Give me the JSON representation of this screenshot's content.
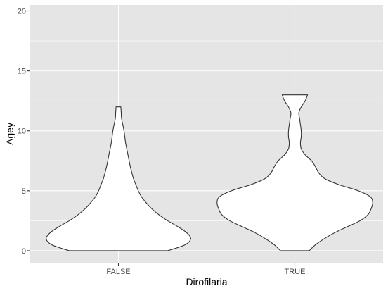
{
  "chart_data": {
    "type": "violin",
    "xlabel": "Dirofilaria",
    "ylabel": "Agey",
    "categories": [
      "FALSE",
      "TRUE"
    ],
    "ylim": [
      -1,
      20.5
    ],
    "yticks": [
      0,
      5,
      10,
      15,
      20
    ],
    "grid": true,
    "colors": {
      "panel_background": "#e5e5e5",
      "grid": "#ffffff",
      "violin_fill": "#ffffff",
      "violin_outline": "#333333",
      "tick_text": "#4d4d4d"
    },
    "violins": [
      {
        "category": "FALSE",
        "y_range": [
          0,
          12
        ],
        "density_profile": [
          {
            "y": 0.0,
            "halfwidth": 0.62
          },
          {
            "y": 0.5,
            "halfwidth": 0.84
          },
          {
            "y": 1.0,
            "halfwidth": 0.91
          },
          {
            "y": 1.5,
            "halfwidth": 0.86
          },
          {
            "y": 2.0,
            "halfwidth": 0.75
          },
          {
            "y": 2.5,
            "halfwidth": 0.62
          },
          {
            "y": 3.0,
            "halfwidth": 0.51
          },
          {
            "y": 3.5,
            "halfwidth": 0.42
          },
          {
            "y": 4.0,
            "halfwidth": 0.35
          },
          {
            "y": 4.5,
            "halfwidth": 0.29
          },
          {
            "y": 5.0,
            "halfwidth": 0.25
          },
          {
            "y": 5.5,
            "halfwidth": 0.22
          },
          {
            "y": 6.0,
            "halfwidth": 0.19
          },
          {
            "y": 7.0,
            "halfwidth": 0.15
          },
          {
            "y": 8.0,
            "halfwidth": 0.12
          },
          {
            "y": 9.0,
            "halfwidth": 0.09
          },
          {
            "y": 10.0,
            "halfwidth": 0.07
          },
          {
            "y": 11.0,
            "halfwidth": 0.04
          },
          {
            "y": 11.5,
            "halfwidth": 0.035
          },
          {
            "y": 12.0,
            "halfwidth": 0.03
          }
        ]
      },
      {
        "category": "TRUE",
        "y_range": [
          0,
          13
        ],
        "density_profile": [
          {
            "y": 0.0,
            "halfwidth": 0.18
          },
          {
            "y": 0.5,
            "halfwidth": 0.26
          },
          {
            "y": 1.0,
            "halfwidth": 0.37
          },
          {
            "y": 1.5,
            "halfwidth": 0.5
          },
          {
            "y": 2.0,
            "halfwidth": 0.66
          },
          {
            "y": 2.5,
            "halfwidth": 0.82
          },
          {
            "y": 3.0,
            "halfwidth": 0.92
          },
          {
            "y": 3.5,
            "halfwidth": 0.96
          },
          {
            "y": 4.0,
            "halfwidth": 0.98
          },
          {
            "y": 4.5,
            "halfwidth": 0.95
          },
          {
            "y": 5.0,
            "halfwidth": 0.8
          },
          {
            "y": 5.5,
            "halfwidth": 0.56
          },
          {
            "y": 6.0,
            "halfwidth": 0.38
          },
          {
            "y": 6.5,
            "halfwidth": 0.3
          },
          {
            "y": 7.0,
            "halfwidth": 0.26
          },
          {
            "y": 7.5,
            "halfwidth": 0.21
          },
          {
            "y": 8.0,
            "halfwidth": 0.13
          },
          {
            "y": 8.5,
            "halfwidth": 0.08
          },
          {
            "y": 9.0,
            "halfwidth": 0.07
          },
          {
            "y": 9.5,
            "halfwidth": 0.08
          },
          {
            "y": 10.0,
            "halfwidth": 0.08
          },
          {
            "y": 10.5,
            "halfwidth": 0.07
          },
          {
            "y": 11.0,
            "halfwidth": 0.06
          },
          {
            "y": 11.5,
            "halfwidth": 0.05
          },
          {
            "y": 12.0,
            "halfwidth": 0.08
          },
          {
            "y": 12.5,
            "halfwidth": 0.13
          },
          {
            "y": 13.0,
            "halfwidth": 0.16
          }
        ]
      }
    ]
  }
}
